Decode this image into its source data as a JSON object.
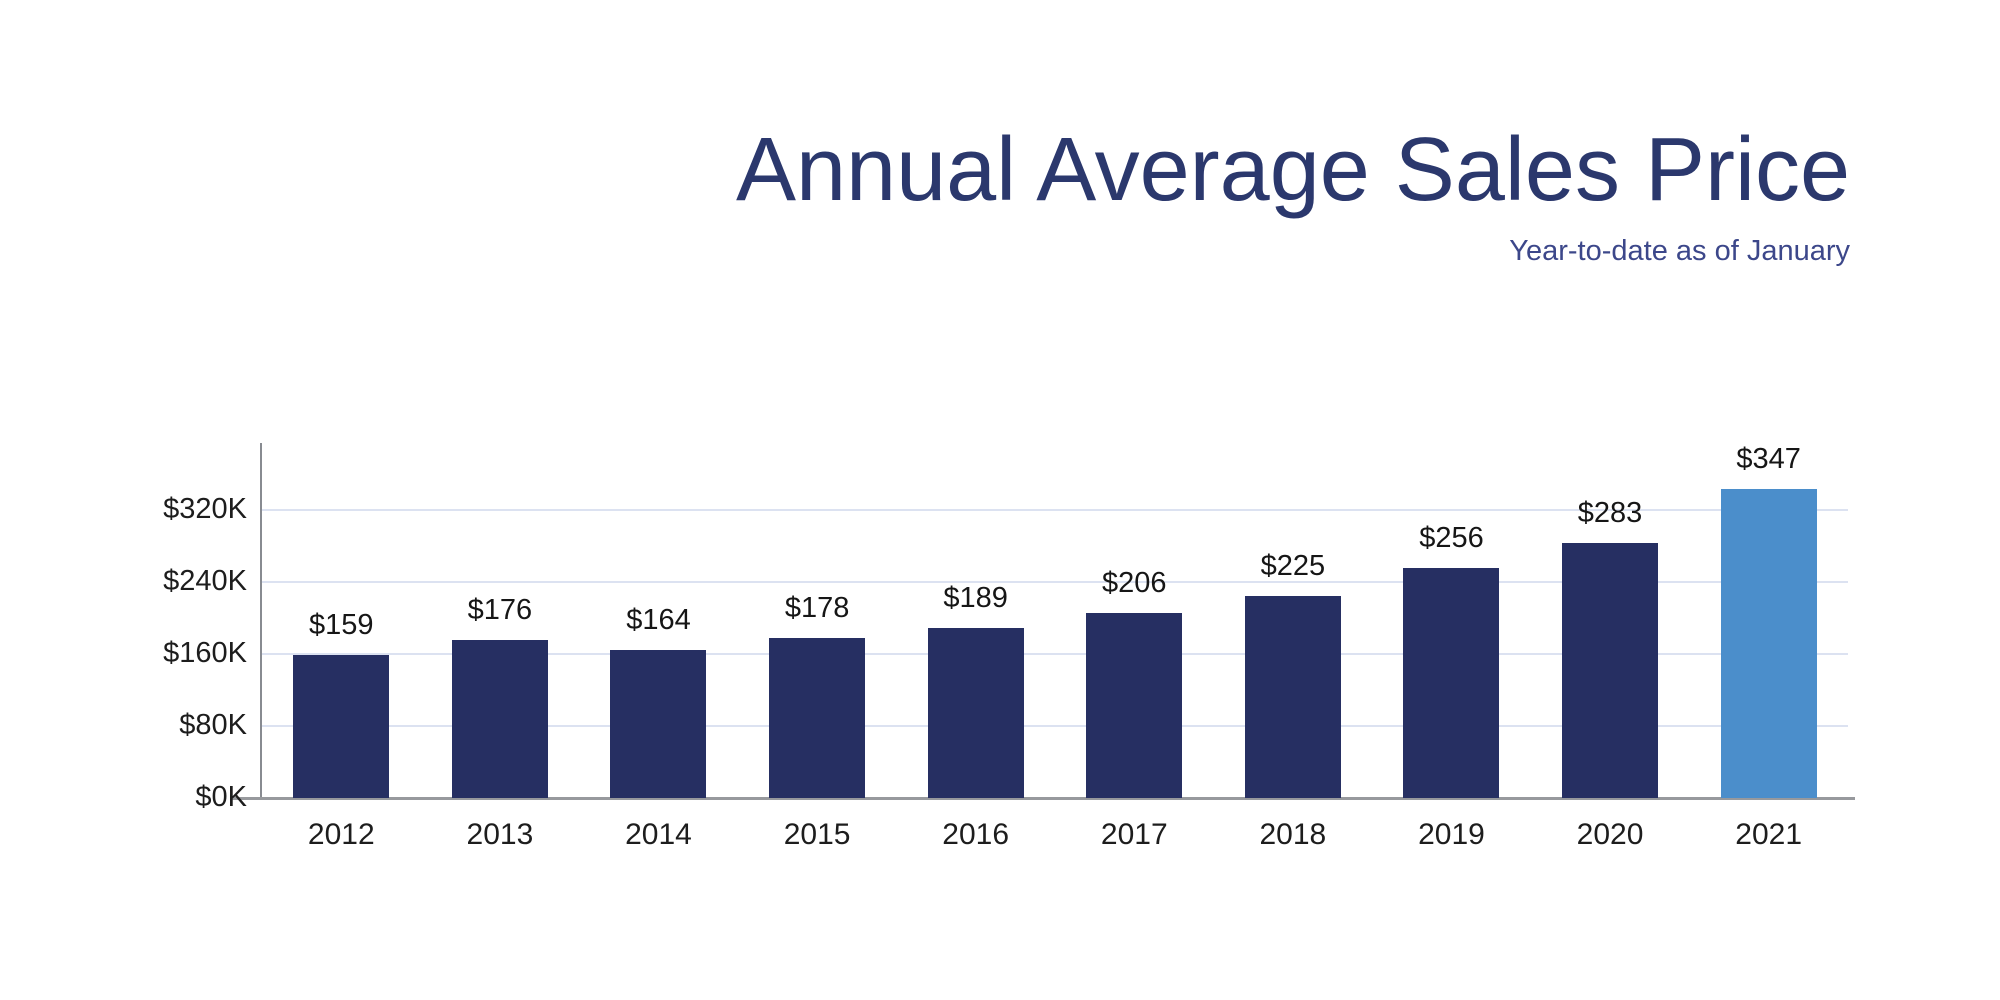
{
  "header": {
    "title": "Annual Average Sales Price",
    "subtitle": "Year-to-date as of January"
  },
  "chart_data": {
    "type": "bar",
    "title": "Annual Average Sales Price",
    "subtitle": "Year-to-date as of January",
    "categories": [
      "2012",
      "2013",
      "2014",
      "2015",
      "2016",
      "2017",
      "2018",
      "2019",
      "2020",
      "2021"
    ],
    "values": [
      159,
      176,
      164,
      178,
      189,
      206,
      225,
      256,
      283,
      347
    ],
    "value_label_prefix": "$",
    "units": "thousands of USD",
    "y_ticks": [
      {
        "label": "$0K",
        "value": 0
      },
      {
        "label": "$80K",
        "value": 80
      },
      {
        "label": "$160K",
        "value": 160
      },
      {
        "label": "$240K",
        "value": 240
      },
      {
        "label": "$320K",
        "value": 320
      }
    ],
    "ylim": [
      0,
      394
    ],
    "grid": "horizontal",
    "legend": "none",
    "highlight_index": 9,
    "colors": {
      "bar": "#262f62",
      "highlight_bar": "#4b8ecb",
      "title": "#2b386d",
      "subtitle": "#3c478a",
      "gridline": "#dce2f1",
      "baseline": "#97999d",
      "axis_line": "#888b91",
      "value_label": "#161616",
      "tick_label": "#1d1d1d",
      "background": "#ffffff"
    }
  }
}
